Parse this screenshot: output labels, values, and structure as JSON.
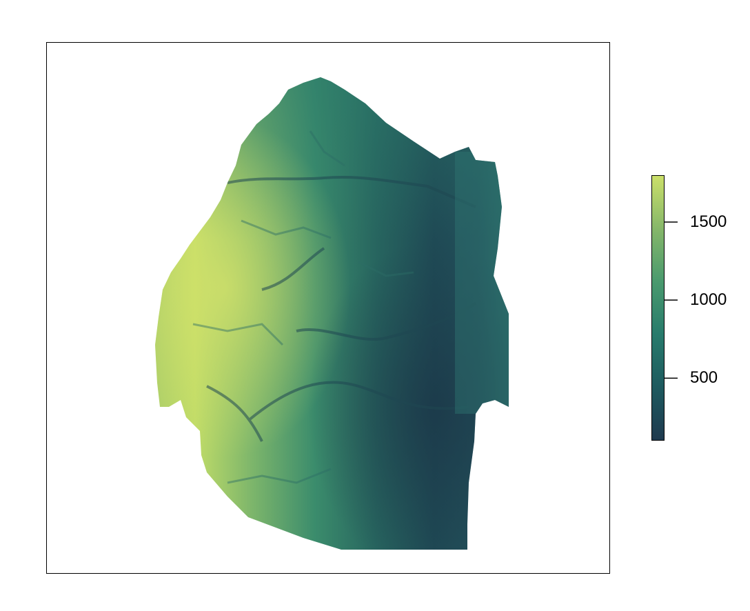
{
  "map": {
    "legend": {
      "ticks": [
        {
          "value": 500,
          "label": "500"
        },
        {
          "value": 1000,
          "label": "1000"
        },
        {
          "value": 1500,
          "label": "1500"
        }
      ],
      "range": [
        100,
        1800
      ],
      "colors": [
        "#1f3a4f",
        "#1e5a5f",
        "#287b6c",
        "#4a9a6e",
        "#86b76a",
        "#cbe06a"
      ]
    }
  }
}
